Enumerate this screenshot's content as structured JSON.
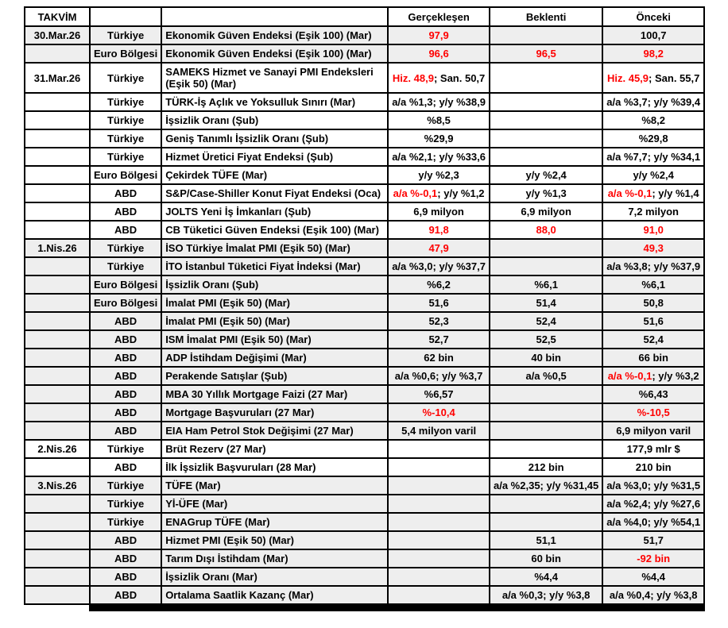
{
  "colors": {
    "red": "#ff0000",
    "row_shade": "#eeeeee",
    "border": "#000000",
    "footer_bar": "#000000"
  },
  "table": {
    "headers": {
      "takvim": "TAKVİM",
      "country": "",
      "indicator": "",
      "actual": "Gerçekleşen",
      "expectation": "Beklenti",
      "previous": "Önceki"
    },
    "rows": [
      {
        "date": "30.Mar.26",
        "country": "Türkiye",
        "indicator": "Ekonomik Güven Endeksi (Eşik 100) (Mar)",
        "actual": [
          [
            "97,9",
            true
          ]
        ],
        "expectation": [],
        "previous": [
          [
            "100,7",
            false
          ]
        ],
        "shaded": true,
        "tall": false
      },
      {
        "date": "",
        "country": "Euro Bölgesi",
        "indicator": "Ekonomik Güven Endeksi (Eşik 100) (Mar)",
        "actual": [
          [
            "96,6",
            true
          ]
        ],
        "expectation": [
          [
            "96,5",
            true
          ]
        ],
        "previous": [
          [
            "98,2",
            true
          ]
        ],
        "shaded": true,
        "tall": false
      },
      {
        "date": "31.Mar.26",
        "country": "Türkiye",
        "indicator": "SAMEKS Hizmet ve Sanayi PMI Endeksleri (Eşik 50) (Mar)",
        "actual": [
          [
            "Hiz. 48,9",
            true
          ],
          [
            "; San. 50,7",
            false
          ]
        ],
        "expectation": [],
        "previous": [
          [
            "Hiz. 45,9",
            true
          ],
          [
            "; San. 55,7",
            false
          ]
        ],
        "shaded": false,
        "tall": true
      },
      {
        "date": "",
        "country": "Türkiye",
        "indicator": "TÜRK-İş Açlık ve Yoksulluk Sınırı (Mar)",
        "actual": [
          [
            "a/a %1,3; y/y %38,9",
            false
          ]
        ],
        "expectation": [],
        "previous": [
          [
            "a/a %3,7; y/y %39,4",
            false
          ]
        ],
        "shaded": false,
        "tall": false
      },
      {
        "date": "",
        "country": "Türkiye",
        "indicator": "İşsizlik Oranı (Şub)",
        "actual": [
          [
            "%8,5",
            false
          ]
        ],
        "expectation": [],
        "previous": [
          [
            "%8,2",
            false
          ]
        ],
        "shaded": false,
        "tall": false
      },
      {
        "date": "",
        "country": "Türkiye",
        "indicator": "Geniş Tanımlı İşsizlik Oranı (Şub)",
        "actual": [
          [
            "%29,9",
            false
          ]
        ],
        "expectation": [],
        "previous": [
          [
            "%29,8",
            false
          ]
        ],
        "shaded": false,
        "tall": false
      },
      {
        "date": "",
        "country": "Türkiye",
        "indicator": "Hizmet Üretici Fiyat Endeksi (Şub)",
        "actual": [
          [
            "a/a %2,1; y/y %33,6",
            false
          ]
        ],
        "expectation": [],
        "previous": [
          [
            "a/a %7,7; y/y %34,1",
            false
          ]
        ],
        "shaded": false,
        "tall": false
      },
      {
        "date": "",
        "country": "Euro Bölgesi",
        "indicator": "Çekirdek TÜFE (Mar)",
        "actual": [
          [
            "y/y %2,3",
            false
          ]
        ],
        "expectation": [
          [
            "y/y %2,4",
            false
          ]
        ],
        "previous": [
          [
            "y/y %2,4",
            false
          ]
        ],
        "shaded": false,
        "tall": false
      },
      {
        "date": "",
        "country": "ABD",
        "indicator": "S&P/Case-Shiller Konut Fiyat Endeksi (Oca)",
        "actual": [
          [
            "a/a %-0,1",
            true
          ],
          [
            "; y/y %1,2",
            false
          ]
        ],
        "expectation": [
          [
            "y/y %1,3",
            false
          ]
        ],
        "previous": [
          [
            "a/a %-0,1",
            true
          ],
          [
            "; y/y %1,4",
            false
          ]
        ],
        "shaded": false,
        "tall": false
      },
      {
        "date": "",
        "country": "ABD",
        "indicator": "JOLTS Yeni İş İmkanları (Şub)",
        "actual": [
          [
            "6,9 milyon",
            false
          ]
        ],
        "expectation": [
          [
            "6,9 milyon",
            false
          ]
        ],
        "previous": [
          [
            "7,2 milyon",
            false
          ]
        ],
        "shaded": false,
        "tall": false
      },
      {
        "date": "",
        "country": "ABD",
        "indicator": "CB Tüketici Güven Endeksi (Eşik 100) (Mar)",
        "actual": [
          [
            "91,8",
            true
          ]
        ],
        "expectation": [
          [
            "88,0",
            true
          ]
        ],
        "previous": [
          [
            "91,0",
            true
          ]
        ],
        "shaded": false,
        "tall": false
      },
      {
        "date": "1.Nis.26",
        "country": "Türkiye",
        "indicator": "İSO Türkiye İmalat PMI (Eşik 50) (Mar)",
        "actual": [
          [
            "47,9",
            true
          ]
        ],
        "expectation": [],
        "previous": [
          [
            "49,3",
            true
          ]
        ],
        "shaded": true,
        "tall": false
      },
      {
        "date": "",
        "country": "Türkiye",
        "indicator": "İTO İstanbul Tüketici Fiyat İndeksi (Mar)",
        "actual": [
          [
            "a/a %3,0; y/y %37,7",
            false
          ]
        ],
        "expectation": [],
        "previous": [
          [
            "a/a %3,8; y/y %37,9",
            false
          ]
        ],
        "shaded": true,
        "tall": false
      },
      {
        "date": "",
        "country": "Euro Bölgesi",
        "indicator": "İşsizlik Oranı (Şub)",
        "actual": [
          [
            "%6,2",
            false
          ]
        ],
        "expectation": [
          [
            "%6,1",
            false
          ]
        ],
        "previous": [
          [
            "%6,1",
            false
          ]
        ],
        "shaded": true,
        "tall": false
      },
      {
        "date": "",
        "country": "Euro Bölgesi",
        "indicator": "İmalat PMI (Eşik 50) (Mar)",
        "actual": [
          [
            "51,6",
            false
          ]
        ],
        "expectation": [
          [
            "51,4",
            false
          ]
        ],
        "previous": [
          [
            "50,8",
            false
          ]
        ],
        "shaded": true,
        "tall": false
      },
      {
        "date": "",
        "country": "ABD",
        "indicator": "İmalat PMI (Eşik 50) (Mar)",
        "actual": [
          [
            "52,3",
            false
          ]
        ],
        "expectation": [
          [
            "52,4",
            false
          ]
        ],
        "previous": [
          [
            "51,6",
            false
          ]
        ],
        "shaded": true,
        "tall": false
      },
      {
        "date": "",
        "country": "ABD",
        "indicator": "ISM İmalat PMI (Eşik 50) (Mar)",
        "actual": [
          [
            "52,7",
            false
          ]
        ],
        "expectation": [
          [
            "52,5",
            false
          ]
        ],
        "previous": [
          [
            "52,4",
            false
          ]
        ],
        "shaded": true,
        "tall": false
      },
      {
        "date": "",
        "country": "ABD",
        "indicator": "ADP İstihdam Değişimi (Mar)",
        "actual": [
          [
            "62 bin",
            false
          ]
        ],
        "expectation": [
          [
            "40 bin",
            false
          ]
        ],
        "previous": [
          [
            "66 bin",
            false
          ]
        ],
        "shaded": true,
        "tall": false
      },
      {
        "date": "",
        "country": "ABD",
        "indicator": "Perakende Satışlar (Şub)",
        "actual": [
          [
            "a/a %0,6; y/y %3,7",
            false
          ]
        ],
        "expectation": [
          [
            "a/a %0,5",
            false
          ]
        ],
        "previous": [
          [
            "a/a %-0,1",
            true
          ],
          [
            "; y/y %3,2",
            false
          ]
        ],
        "shaded": true,
        "tall": false
      },
      {
        "date": "",
        "country": "ABD",
        "indicator": "MBA 30 Yıllık Mortgage Faizi (27 Mar)",
        "actual": [
          [
            "%6,57",
            false
          ]
        ],
        "expectation": [],
        "previous": [
          [
            "%6,43",
            false
          ]
        ],
        "shaded": true,
        "tall": false
      },
      {
        "date": "",
        "country": "ABD",
        "indicator": "Mortgage Başvuruları (27 Mar)",
        "actual": [
          [
            "%-10,4",
            true
          ]
        ],
        "expectation": [],
        "previous": [
          [
            "%-10,5",
            true
          ]
        ],
        "shaded": true,
        "tall": false
      },
      {
        "date": "",
        "country": "ABD",
        "indicator": "EIA Ham Petrol Stok Değişimi (27 Mar)",
        "actual": [
          [
            "5,4 milyon varil",
            false
          ]
        ],
        "expectation": [],
        "previous": [
          [
            "6,9 milyon varil",
            false
          ]
        ],
        "shaded": true,
        "tall": false
      },
      {
        "date": "2.Nis.26",
        "country": "Türkiye",
        "indicator": "Brüt Rezerv (27 Mar)",
        "actual": [],
        "expectation": [],
        "previous": [
          [
            "177,9 mlr $",
            false
          ]
        ],
        "shaded": false,
        "tall": false
      },
      {
        "date": "",
        "country": "ABD",
        "indicator": "İlk İşsizlik Başvuruları (28 Mar)",
        "actual": [],
        "expectation": [
          [
            "212 bin",
            false
          ]
        ],
        "previous": [
          [
            "210 bin",
            false
          ]
        ],
        "shaded": false,
        "tall": false
      },
      {
        "date": "3.Nis.26",
        "country": "Türkiye",
        "indicator": "TÜFE (Mar)",
        "actual": [],
        "expectation": [
          [
            "a/a %2,35; y/y %31,45",
            false
          ]
        ],
        "previous": [
          [
            "a/a %3,0; y/y %31,5",
            false
          ]
        ],
        "shaded": true,
        "tall": false
      },
      {
        "date": "",
        "country": "Türkiye",
        "indicator": "Yİ-ÜFE (Mar)",
        "actual": [],
        "expectation": [],
        "previous": [
          [
            "a/a %2,4; y/y %27,6",
            false
          ]
        ],
        "shaded": true,
        "tall": false
      },
      {
        "date": "",
        "country": "Türkiye",
        "indicator": "ENAGrup TÜFE (Mar)",
        "actual": [],
        "expectation": [],
        "previous": [
          [
            "a/a %4,0; y/y %54,1",
            false
          ]
        ],
        "shaded": true,
        "tall": false
      },
      {
        "date": "",
        "country": "ABD",
        "indicator": "Hizmet PMI (Eşik 50) (Mar)",
        "actual": [],
        "expectation": [
          [
            "51,1",
            false
          ]
        ],
        "previous": [
          [
            "51,7",
            false
          ]
        ],
        "shaded": true,
        "tall": false
      },
      {
        "date": "",
        "country": "ABD",
        "indicator": "Tarım Dışı İstihdam (Mar)",
        "actual": [],
        "expectation": [
          [
            "60 bin",
            false
          ]
        ],
        "previous": [
          [
            "-92 bin",
            true
          ]
        ],
        "shaded": true,
        "tall": false
      },
      {
        "date": "",
        "country": "ABD",
        "indicator": "İşsizlik Oranı (Mar)",
        "actual": [],
        "expectation": [
          [
            "%4,4",
            false
          ]
        ],
        "previous": [
          [
            "%4,4",
            false
          ]
        ],
        "shaded": true,
        "tall": false
      },
      {
        "date": "",
        "country": "ABD",
        "indicator": "Ortalama Saatlik Kazanç (Mar)",
        "actual": [],
        "expectation": [
          [
            "a/a %0,3; y/y %3,8",
            false
          ]
        ],
        "previous": [
          [
            "a/a %0,4; y/y %3,8",
            false
          ]
        ],
        "shaded": true,
        "tall": false
      }
    ]
  }
}
